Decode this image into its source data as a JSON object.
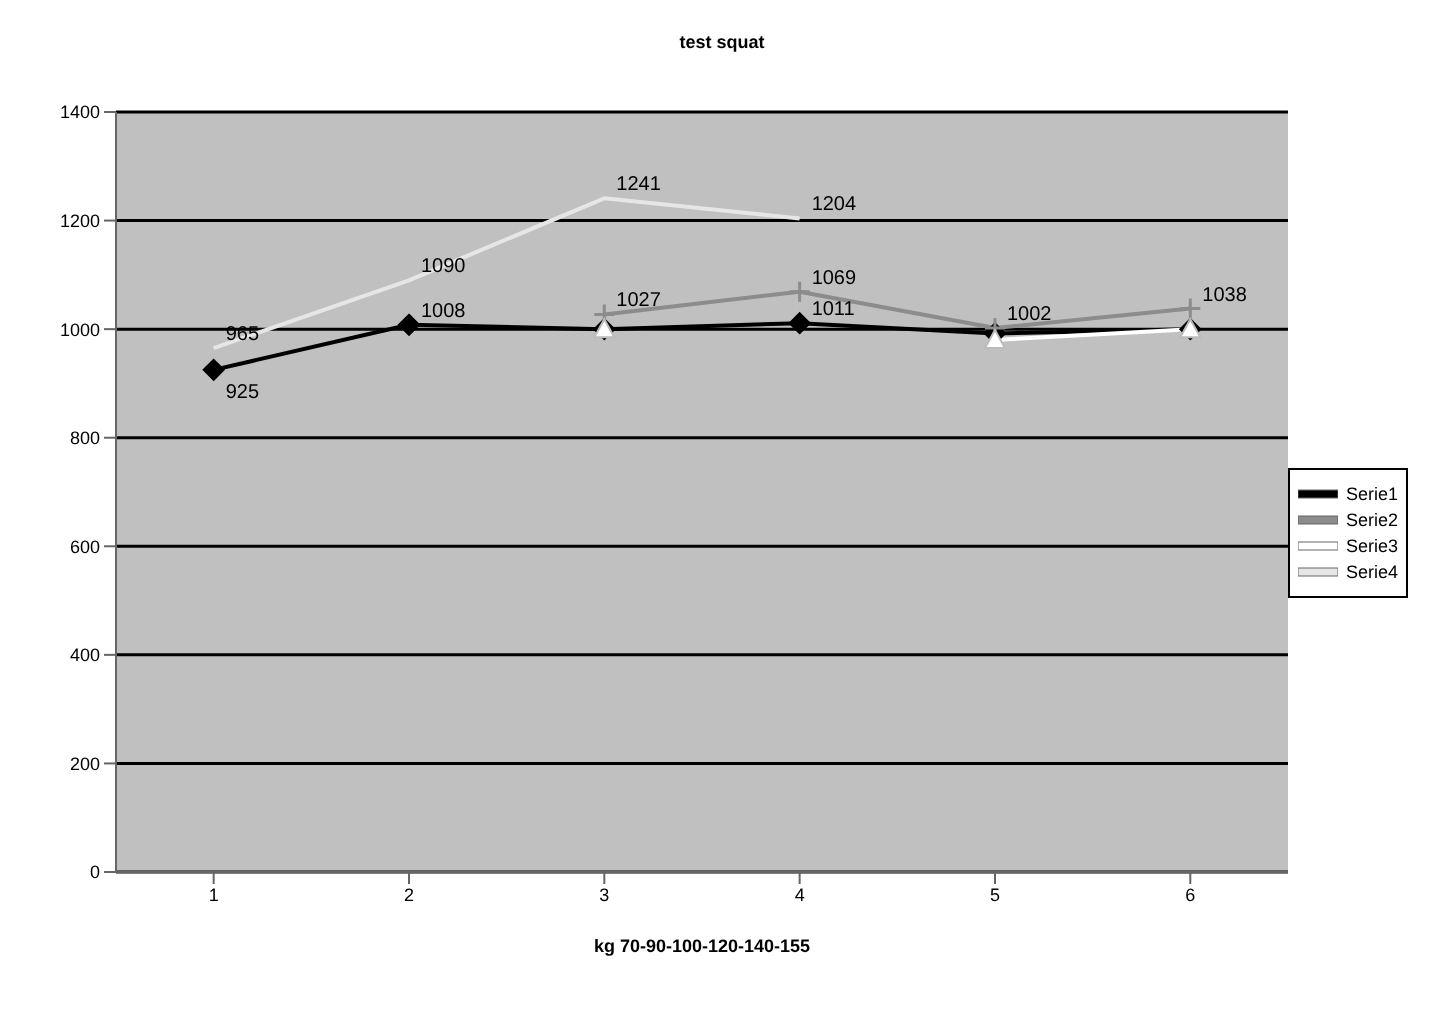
{
  "chart_data": {
    "type": "line",
    "title": "test squat",
    "xlabel": "kg 70-90-100-120-140-155",
    "categories": [
      "1",
      "2",
      "3",
      "4",
      "5",
      "6"
    ],
    "series": [
      {
        "name": "Serie1",
        "color": "#000000",
        "marker": "diamond",
        "values": [
          925,
          1008,
          1000,
          1011,
          992,
          1000
        ],
        "value_labels": [
          "925",
          "1008",
          null,
          "1011",
          null,
          null
        ]
      },
      {
        "name": "Serie2",
        "color": "#8c8c8c",
        "marker": "cross",
        "values": [
          null,
          null,
          1027,
          1069,
          1002,
          1038
        ],
        "value_labels": [
          null,
          null,
          "1027",
          "1069",
          "1002",
          "1038"
        ]
      },
      {
        "name": "Serie3",
        "color": "#ffffff",
        "marker": "triangle",
        "values": [
          null,
          null,
          1000,
          null,
          980,
          1000
        ]
      },
      {
        "name": "Serie4",
        "color": "#e6e6e6",
        "marker": "none",
        "values": [
          965,
          1090,
          1241,
          1204,
          null,
          null
        ],
        "value_labels": [
          "965",
          "1090",
          "1241",
          "1204",
          null,
          null
        ]
      }
    ],
    "ylim": [
      0,
      1400
    ],
    "yticks": [
      0,
      200,
      400,
      600,
      800,
      1000,
      1200,
      1400
    ],
    "grid": "y",
    "legend": "right"
  }
}
